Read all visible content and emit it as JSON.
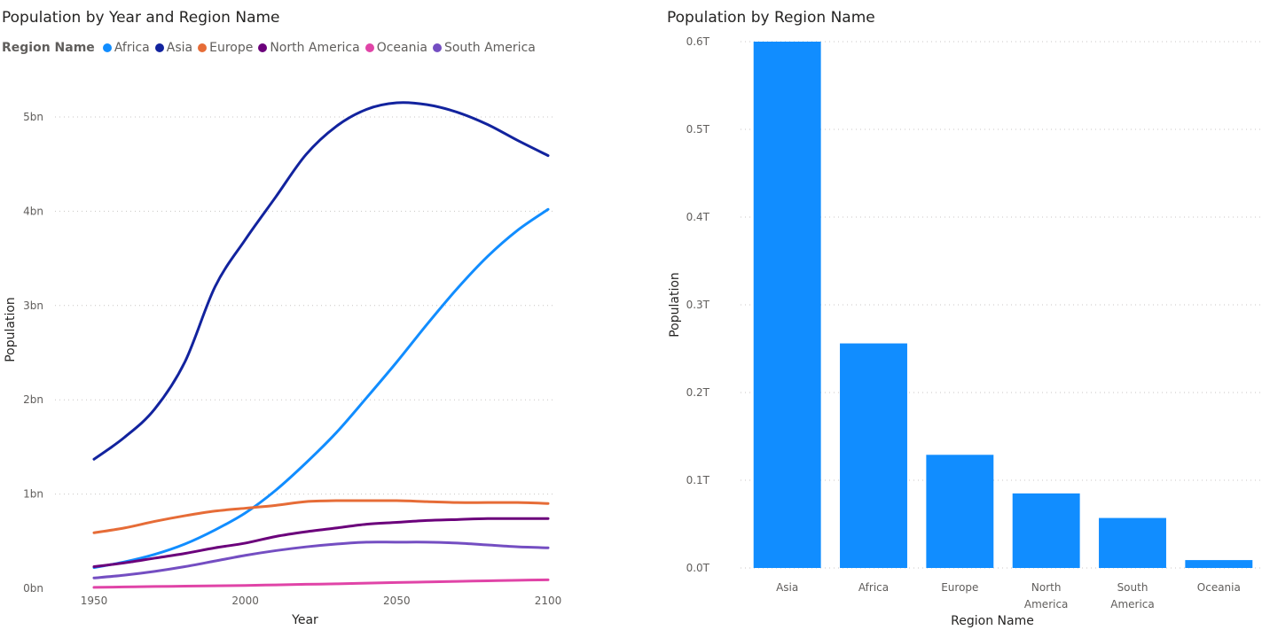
{
  "chart_data": [
    {
      "type": "line",
      "title": "Population by Year and Region Name",
      "legend_title": "Region Name",
      "legend_position": "top-left",
      "xlabel": "Year",
      "ylabel": "Population",
      "xlim": [
        1950,
        2100
      ],
      "ylim": [
        0,
        5000000000
      ],
      "x_ticks": [
        1950,
        2000,
        2050,
        2100
      ],
      "y_ticks": [
        0,
        1000000000,
        2000000000,
        3000000000,
        4000000000,
        5000000000
      ],
      "y_tick_labels": [
        "0bn",
        "1bn",
        "2bn",
        "3bn",
        "4bn",
        "5bn"
      ],
      "grid": true,
      "x": [
        1950,
        1960,
        1970,
        1980,
        1990,
        2000,
        2010,
        2020,
        2030,
        2040,
        2050,
        2060,
        2070,
        2080,
        2090,
        2100
      ],
      "series": [
        {
          "name": "Africa",
          "color": "#118DFF",
          "values": [
            0.22,
            0.28,
            0.36,
            0.47,
            0.62,
            0.8,
            1.04,
            1.33,
            1.65,
            2.02,
            2.4,
            2.8,
            3.18,
            3.52,
            3.8,
            4.02
          ]
        },
        {
          "name": "Asia",
          "color": "#12239E",
          "values": [
            1.37,
            1.6,
            1.9,
            2.4,
            3.2,
            3.7,
            4.15,
            4.6,
            4.9,
            5.08,
            5.15,
            5.13,
            5.05,
            4.92,
            4.75,
            4.59
          ]
        },
        {
          "name": "Europe",
          "color": "#E66C37",
          "values": [
            0.59,
            0.64,
            0.71,
            0.77,
            0.82,
            0.85,
            0.88,
            0.92,
            0.93,
            0.93,
            0.93,
            0.92,
            0.91,
            0.91,
            0.91,
            0.9
          ]
        },
        {
          "name": "North America",
          "color": "#6B007B",
          "values": [
            0.23,
            0.27,
            0.32,
            0.37,
            0.43,
            0.48,
            0.55,
            0.6,
            0.64,
            0.68,
            0.7,
            0.72,
            0.73,
            0.74,
            0.74,
            0.74
          ]
        },
        {
          "name": "Oceania",
          "color": "#E044A7",
          "values": [
            0.01,
            0.015,
            0.02,
            0.023,
            0.027,
            0.031,
            0.037,
            0.043,
            0.048,
            0.055,
            0.062,
            0.068,
            0.074,
            0.08,
            0.086,
            0.091
          ]
        },
        {
          "name": "South America",
          "color": "#744EC2",
          "values": [
            0.11,
            0.14,
            0.18,
            0.23,
            0.29,
            0.35,
            0.4,
            0.44,
            0.47,
            0.49,
            0.49,
            0.49,
            0.48,
            0.46,
            0.44,
            0.43
          ]
        }
      ],
      "value_unit": "bn"
    },
    {
      "type": "bar",
      "title": "Population by Region Name",
      "xlabel": "Region Name",
      "ylabel": "Population",
      "categories": [
        "Asia",
        "Africa",
        "Europe",
        "North America",
        "South America",
        "Oceania"
      ],
      "values": [
        0.6,
        0.256,
        0.129,
        0.085,
        0.057,
        0.009
      ],
      "value_unit": "T",
      "ylim": [
        0,
        0.6
      ],
      "y_ticks": [
        0,
        0.1,
        0.2,
        0.3,
        0.4,
        0.5,
        0.6
      ],
      "y_tick_labels": [
        "0.0T",
        "0.1T",
        "0.2T",
        "0.3T",
        "0.4T",
        "0.5T",
        "0.6T"
      ],
      "grid": true,
      "color": "#118DFF"
    }
  ]
}
